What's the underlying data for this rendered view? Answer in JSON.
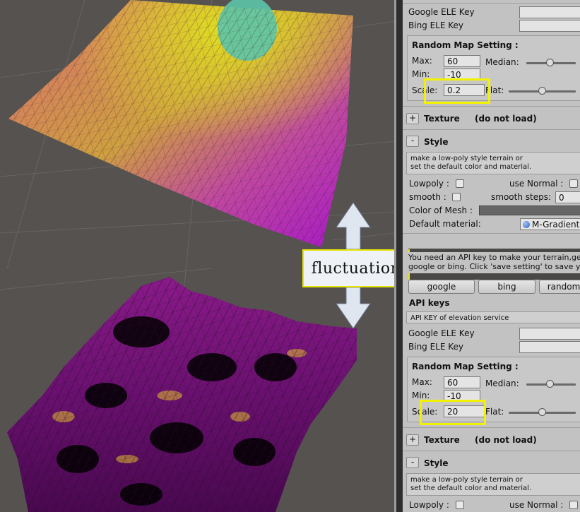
{
  "callout": {
    "text": "fluctuation"
  },
  "top_panel": {
    "api_keys": [
      {
        "label": "Google ELE Key",
        "value": ""
      },
      {
        "label": "Bing ELE Key",
        "value": ""
      }
    ],
    "random_map": {
      "title": "Random Map Setting :",
      "max_label": "Max:",
      "max_value": "60",
      "min_label": "Min:",
      "min_value": "-10",
      "scale_label": "Scale:",
      "scale_value": "0.2",
      "median_label": "Median:",
      "median_level": 0.5,
      "flat_label": "Flat:",
      "flat_level": 0.5
    },
    "texture": {
      "toggle": "+",
      "label": "Texture",
      "status": "(do not load)"
    },
    "style": {
      "toggle": "-",
      "label": "Style",
      "note_line1": "make a low-poly style terrain or",
      "note_line2": " set the default color and material.",
      "lowpoly_label": "Lowpoly :",
      "use_normal_label": "use Normal :",
      "smooth_label": "smooth :",
      "smooth_steps_label": "smooth steps:",
      "smooth_steps_value": "0",
      "color_label": "Color of Mesh :",
      "material_label": "Default material:",
      "material_value": "M-Gradient"
    }
  },
  "bottom_panel": {
    "help_line1": "You need an API key to make your terrain,get",
    "help_line2": "google or bing. Click 'save setting' to save you",
    "buttons": [
      "google",
      "bing",
      "random"
    ],
    "api_keys_title": "API keys",
    "api_keys_note": "API KEY of elevation service",
    "api_keys": [
      {
        "label": "Google ELE Key",
        "value": ""
      },
      {
        "label": "Bing ELE Key",
        "value": ""
      }
    ],
    "random_map": {
      "title": "Random Map Setting :",
      "max_label": "Max:",
      "max_value": "60",
      "min_label": "Min:",
      "min_value": "-10",
      "scale_label": "Scale:",
      "scale_value": "20",
      "median_label": "Median:",
      "median_level": 0.5,
      "flat_label": "Flat:",
      "flat_level": 0.5
    },
    "texture": {
      "toggle": "+",
      "label": "Texture",
      "status": "(do not load)"
    },
    "style": {
      "toggle": "-",
      "label": "Style",
      "note_line1": "make a low-poly style terrain or",
      "note_line2": " set the default color and material.",
      "lowpoly_label": "Lowpoly :",
      "use_normal_label": "use Normal :"
    }
  },
  "colors": {
    "highlight": "#f2f200",
    "panel_bg": "#c2c2c2",
    "scene_bg": "#55524f",
    "terrain_pink": "#d8628c",
    "terrain_yellow": "#d8d030",
    "terrain_magenta": "#b020c0",
    "terrain_teal": "#58c8a8"
  }
}
